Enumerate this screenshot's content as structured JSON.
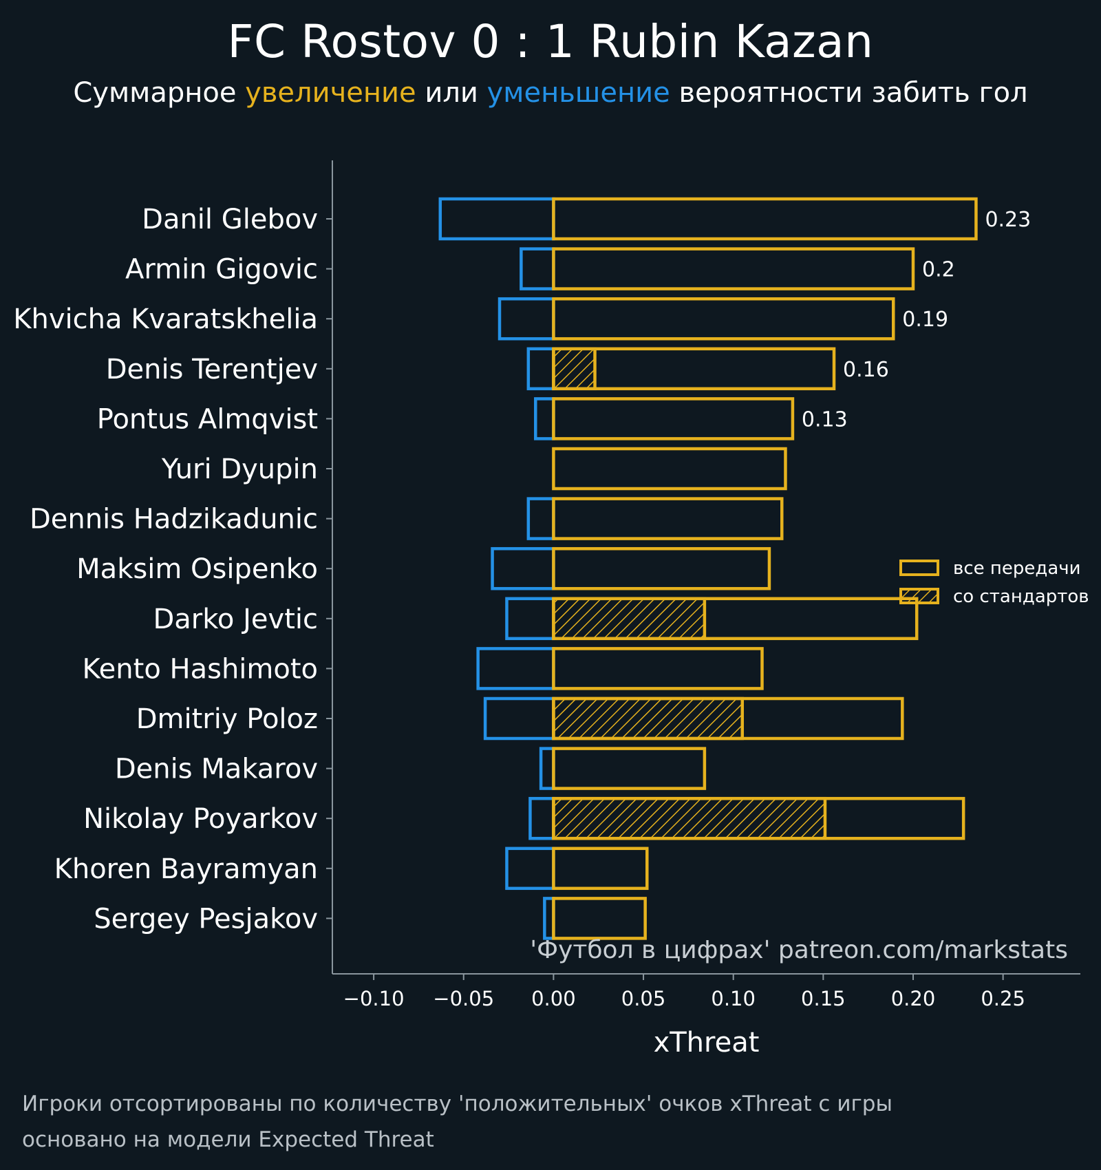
{
  "title": "FC Rostov 0 : 1 Rubin Kazan",
  "subtitle": {
    "prefix": "Суммарное",
    "increase_word": "увеличение",
    "middle": "или",
    "decrease_word": "уменьшение",
    "suffix": "вероятности забить гол"
  },
  "colors": {
    "background": "#0e1820",
    "positive": "#e6b21e",
    "negative": "#2491e6",
    "axis": "#8a969e",
    "text": "#ffffff"
  },
  "footnotes": [
    "Игроки отсортированы по количеству 'положительных' очков xThreat с игры",
    "основано на модели Expected Threat"
  ],
  "chart_data": {
    "type": "bar",
    "orientation": "horizontal",
    "xlabel": "xThreat",
    "xlim": [
      -0.123,
      0.293
    ],
    "xticks": [
      -0.1,
      -0.05,
      0.0,
      0.05,
      0.1,
      0.15,
      0.2,
      0.25
    ],
    "xtick_labels": [
      "−0.10",
      "−0.05",
      "0.00",
      "0.05",
      "0.10",
      "0.15",
      "0.20",
      "0.25"
    ],
    "watermark": "'Футбол в цифрах' patreon.com/markstats",
    "legend": {
      "position": "right",
      "entries": [
        "все передачи",
        "со стандартов"
      ]
    },
    "players": [
      {
        "name": "Danil Glebov",
        "negative": -0.063,
        "positive": 0.235,
        "set_piece": 0.0,
        "label": "0.23"
      },
      {
        "name": "Armin Gigovic",
        "negative": -0.018,
        "positive": 0.2,
        "set_piece": 0.0,
        "label": "0.2"
      },
      {
        "name": "Khvicha Kvaratskhelia",
        "negative": -0.03,
        "positive": 0.189,
        "set_piece": 0.0,
        "label": "0.19"
      },
      {
        "name": "Denis Terentjev",
        "negative": -0.014,
        "positive": 0.156,
        "set_piece": 0.023,
        "label": "0.16"
      },
      {
        "name": "Pontus Almqvist",
        "negative": -0.01,
        "positive": 0.133,
        "set_piece": 0.0,
        "label": "0.13"
      },
      {
        "name": "Yuri Dyupin",
        "negative": 0.0,
        "positive": 0.129,
        "set_piece": 0.0,
        "label": ""
      },
      {
        "name": "Dennis Hadzikadunic",
        "negative": -0.014,
        "positive": 0.127,
        "set_piece": 0.0,
        "label": ""
      },
      {
        "name": "Maksim Osipenko",
        "negative": -0.034,
        "positive": 0.12,
        "set_piece": 0.0,
        "label": ""
      },
      {
        "name": "Darko Jevtic",
        "negative": -0.026,
        "positive": 0.202,
        "set_piece": 0.084,
        "label": ""
      },
      {
        "name": "Kento Hashimoto",
        "negative": -0.042,
        "positive": 0.116,
        "set_piece": 0.0,
        "label": ""
      },
      {
        "name": "Dmitriy Poloz",
        "negative": -0.038,
        "positive": 0.194,
        "set_piece": 0.105,
        "label": ""
      },
      {
        "name": "Denis Makarov",
        "negative": -0.007,
        "positive": 0.084,
        "set_piece": 0.0,
        "label": ""
      },
      {
        "name": "Nikolay Poyarkov",
        "negative": -0.013,
        "positive": 0.228,
        "set_piece": 0.151,
        "label": ""
      },
      {
        "name": "Khoren Bayramyan",
        "negative": -0.026,
        "positive": 0.052,
        "set_piece": 0.0,
        "label": ""
      },
      {
        "name": "Sergey Pesjakov",
        "negative": -0.005,
        "positive": 0.051,
        "set_piece": 0.0,
        "label": ""
      }
    ]
  }
}
